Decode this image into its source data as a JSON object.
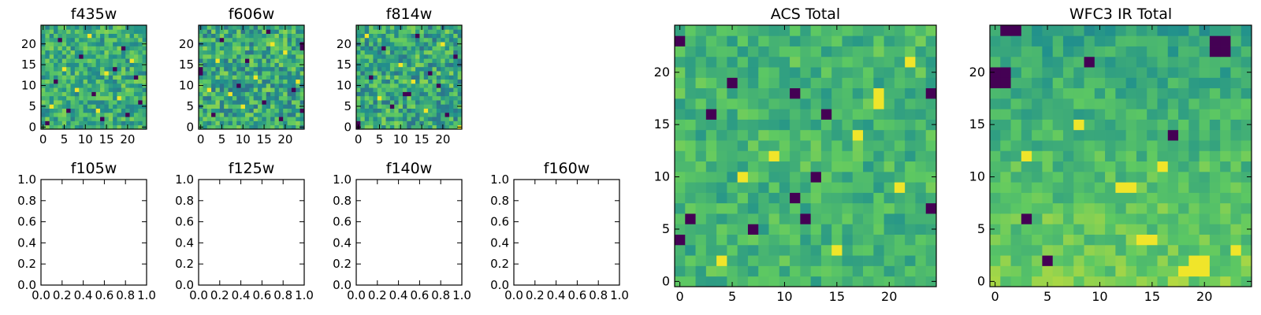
{
  "figure": {
    "colormap": "viridis",
    "colormap_stops": [
      "#440154",
      "#3b528b",
      "#21918c",
      "#5ec962",
      "#fde725"
    ]
  },
  "chart_data": [
    {
      "id": "f435w",
      "type": "heatmap",
      "title": "f435w",
      "grid_size": 25,
      "xlim": [
        -0.5,
        24.5
      ],
      "ylim": [
        -0.5,
        24.5
      ],
      "xticks": [
        0,
        5,
        10,
        15,
        20
      ],
      "yticks": [
        0,
        5,
        10,
        15,
        20
      ],
      "z_range": [
        0,
        1
      ],
      "z_bias": 0.62,
      "z_spread": 0.2,
      "dark_cells": [
        [
          4,
          21
        ],
        [
          12,
          8
        ],
        [
          20,
          3
        ],
        [
          17,
          14
        ],
        [
          3,
          11
        ],
        [
          23,
          6
        ],
        [
          9,
          17
        ],
        [
          14,
          2
        ],
        [
          6,
          4
        ],
        [
          19,
          19
        ],
        [
          1,
          1
        ],
        [
          22,
          12
        ]
      ],
      "bright_cells": [
        [
          8,
          9
        ],
        [
          15,
          13
        ],
        [
          2,
          5
        ],
        [
          11,
          22
        ],
        [
          18,
          7
        ],
        [
          21,
          16
        ],
        [
          5,
          14
        ],
        [
          13,
          4
        ]
      ]
    },
    {
      "id": "f606w",
      "type": "heatmap",
      "title": "f606w",
      "grid_size": 25,
      "xlim": [
        -0.5,
        24.5
      ],
      "ylim": [
        -0.5,
        24.5
      ],
      "xticks": [
        0,
        5,
        10,
        15,
        20
      ],
      "yticks": [
        0,
        5,
        10,
        15,
        20
      ],
      "z_range": [
        0,
        1
      ],
      "z_bias": 0.6,
      "z_spread": 0.23,
      "dark_cells": [
        [
          24,
          19
        ],
        [
          24,
          20
        ],
        [
          0,
          14
        ],
        [
          0,
          13
        ],
        [
          9,
          10
        ],
        [
          15,
          6
        ],
        [
          19,
          2
        ],
        [
          5,
          21
        ],
        [
          11,
          16
        ],
        [
          22,
          9
        ],
        [
          3,
          3
        ],
        [
          16,
          23
        ],
        [
          24,
          4
        ]
      ],
      "bright_cells": [
        [
          7,
          8
        ],
        [
          13,
          12
        ],
        [
          20,
          18
        ],
        [
          4,
          16
        ],
        [
          10,
          5
        ],
        [
          17,
          20
        ],
        [
          23,
          11
        ],
        [
          2,
          9
        ]
      ]
    },
    {
      "id": "f814w",
      "type": "heatmap",
      "title": "f814w",
      "grid_size": 25,
      "xlim": [
        -0.5,
        24.5
      ],
      "ylim": [
        -0.5,
        24.5
      ],
      "xticks": [
        0,
        5,
        10,
        15,
        20
      ],
      "yticks": [
        0,
        5,
        10,
        15,
        20
      ],
      "z_range": [
        0,
        1
      ],
      "z_bias": 0.6,
      "z_spread": 0.23,
      "dark_cells": [
        [
          11,
          8
        ],
        [
          12,
          8
        ],
        [
          0,
          0
        ],
        [
          0,
          1
        ],
        [
          6,
          19
        ],
        [
          17,
          13
        ],
        [
          21,
          3
        ],
        [
          3,
          12
        ],
        [
          14,
          22
        ],
        [
          23,
          17
        ],
        [
          8,
          5
        ],
        [
          19,
          10
        ]
      ],
      "bright_cells": [
        [
          24,
          0
        ],
        [
          5,
          7
        ],
        [
          10,
          15
        ],
        [
          16,
          4
        ],
        [
          20,
          20
        ],
        [
          2,
          22
        ],
        [
          13,
          11
        ]
      ]
    },
    {
      "id": "acs_total",
      "type": "heatmap",
      "title": "ACS Total",
      "grid_size": 25,
      "xlim": [
        -0.5,
        24.5
      ],
      "ylim": [
        -0.5,
        24.5
      ],
      "xticks": [
        0,
        5,
        10,
        15,
        20
      ],
      "yticks": [
        0,
        5,
        10,
        15,
        20
      ],
      "z_range": [
        0,
        1
      ],
      "z_bias": 0.66,
      "z_spread": 0.13,
      "dark_cells": [
        [
          0,
          23
        ],
        [
          3,
          16
        ],
        [
          7,
          5
        ],
        [
          12,
          6
        ],
        [
          11,
          8
        ],
        [
          14,
          16
        ],
        [
          0,
          4
        ],
        [
          24,
          18
        ],
        [
          24,
          7
        ],
        [
          1,
          6
        ],
        [
          13,
          10
        ],
        [
          5,
          19
        ],
        [
          11,
          18
        ]
      ],
      "bright_cells": [
        [
          19,
          17
        ],
        [
          19,
          18
        ],
        [
          22,
          21
        ],
        [
          6,
          10
        ],
        [
          9,
          12
        ],
        [
          17,
          14
        ],
        [
          21,
          9
        ],
        [
          4,
          2
        ],
        [
          15,
          3
        ]
      ]
    },
    {
      "id": "wfc3_ir_total",
      "type": "heatmap",
      "title": "WFC3 IR Total",
      "grid_size": 25,
      "xlim": [
        -0.5,
        24.5
      ],
      "ylim": [
        -0.5,
        24.5
      ],
      "xticks": [
        0,
        5,
        10,
        15,
        20
      ],
      "yticks": [
        0,
        5,
        10,
        15,
        20
      ],
      "z_range": [
        0,
        1
      ],
      "z_bias": 0.68,
      "z_spread": 0.11,
      "dark_cells": [
        [
          21,
          22
        ],
        [
          22,
          22
        ],
        [
          21,
          23
        ],
        [
          22,
          23
        ],
        [
          0,
          19
        ],
        [
          1,
          19
        ],
        [
          1,
          20
        ],
        [
          0,
          20
        ],
        [
          3,
          6
        ],
        [
          1,
          24
        ],
        [
          2,
          24
        ],
        [
          5,
          2
        ],
        [
          9,
          21
        ],
        [
          17,
          14
        ]
      ],
      "bright_cells": [
        [
          19,
          1
        ],
        [
          20,
          1
        ],
        [
          19,
          2
        ],
        [
          20,
          2
        ],
        [
          18,
          1
        ],
        [
          12,
          9
        ],
        [
          13,
          9
        ],
        [
          14,
          4
        ],
        [
          15,
          4
        ],
        [
          3,
          12
        ],
        [
          23,
          3
        ],
        [
          8,
          15
        ],
        [
          16,
          11
        ]
      ]
    },
    {
      "id": "f105w",
      "type": "scatter",
      "title": "f105w",
      "xlim": [
        0,
        1
      ],
      "ylim": [
        0,
        1
      ],
      "xticks": [
        "0.0",
        "0.2",
        "0.4",
        "0.6",
        "0.8",
        "1.0"
      ],
      "yticks": [
        "0.0",
        "0.2",
        "0.4",
        "0.6",
        "0.8",
        "1.0"
      ],
      "x": [],
      "y": []
    },
    {
      "id": "f125w",
      "type": "scatter",
      "title": "f125w",
      "xlim": [
        0,
        1
      ],
      "ylim": [
        0,
        1
      ],
      "xticks": [
        "0.0",
        "0.2",
        "0.4",
        "0.6",
        "0.8",
        "1.0"
      ],
      "yticks": [
        "0.0",
        "0.2",
        "0.4",
        "0.6",
        "0.8",
        "1.0"
      ],
      "x": [],
      "y": []
    },
    {
      "id": "f140w",
      "type": "scatter",
      "title": "f140w",
      "xlim": [
        0,
        1
      ],
      "ylim": [
        0,
        1
      ],
      "xticks": [
        "0.0",
        "0.2",
        "0.4",
        "0.6",
        "0.8",
        "1.0"
      ],
      "yticks": [
        "0.0",
        "0.2",
        "0.4",
        "0.6",
        "0.8",
        "1.0"
      ],
      "x": [],
      "y": []
    },
    {
      "id": "f160w",
      "type": "scatter",
      "title": "f160w",
      "xlim": [
        0,
        1
      ],
      "ylim": [
        0,
        1
      ],
      "xticks": [
        "0.0",
        "0.2",
        "0.4",
        "0.6",
        "0.8",
        "1.0"
      ],
      "yticks": [
        "0.0",
        "0.2",
        "0.4",
        "0.6",
        "0.8",
        "1.0"
      ],
      "x": [],
      "y": []
    }
  ]
}
